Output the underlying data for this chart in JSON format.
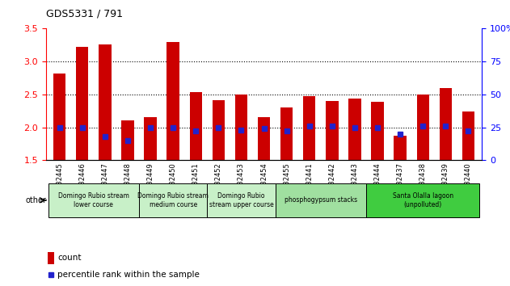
{
  "title": "GDS5331 / 791",
  "samples": [
    "GSM832445",
    "GSM832446",
    "GSM832447",
    "GSM832448",
    "GSM832449",
    "GSM832450",
    "GSM832451",
    "GSM832452",
    "GSM832453",
    "GSM832454",
    "GSM832455",
    "GSM832441",
    "GSM832442",
    "GSM832443",
    "GSM832444",
    "GSM832437",
    "GSM832438",
    "GSM832439",
    "GSM832440"
  ],
  "count_values": [
    2.82,
    3.22,
    3.26,
    2.11,
    2.15,
    3.3,
    2.54,
    2.41,
    2.5,
    2.15,
    2.3,
    2.47,
    2.4,
    2.44,
    2.39,
    1.87,
    2.5,
    2.6,
    2.24
  ],
  "percentile_values": [
    25,
    25,
    18,
    15,
    25,
    25,
    22,
    25,
    23,
    24,
    22,
    26,
    26,
    25,
    25,
    20,
    26,
    26,
    22
  ],
  "groups": [
    {
      "label": "Domingo Rubio stream\nlower course",
      "start": 0,
      "end": 4,
      "color": "#c8f0c8"
    },
    {
      "label": "Domingo Rubio stream\nmedium course",
      "start": 4,
      "end": 7,
      "color": "#c8f0c8"
    },
    {
      "label": "Domingo Rubio\nstream upper course",
      "start": 7,
      "end": 10,
      "color": "#c8f0c8"
    },
    {
      "label": "phosphogypsum stacks",
      "start": 10,
      "end": 14,
      "color": "#a0e0a0"
    },
    {
      "label": "Santa Olalla lagoon\n(unpolluted)",
      "start": 14,
      "end": 19,
      "color": "#40cc40"
    }
  ],
  "ylim_left": [
    1.5,
    3.5
  ],
  "ylim_right": [
    0,
    100
  ],
  "yticks_left": [
    1.5,
    2.0,
    2.5,
    3.0,
    3.5
  ],
  "yticks_right": [
    0,
    25,
    50,
    75,
    100
  ],
  "bar_color": "#cc0000",
  "dot_color": "#2222cc",
  "baseline": 1.5,
  "bar_width": 0.55,
  "dot_size": 4
}
